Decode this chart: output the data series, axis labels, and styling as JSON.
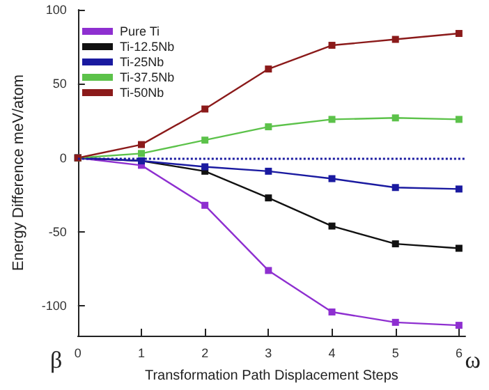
{
  "chart_data": {
    "type": "line",
    "xlabel": "Transformation Path Displacement Steps",
    "ylabel": "Energy Difference meV/atom",
    "x": [
      0,
      1,
      2,
      3,
      4,
      5,
      6
    ],
    "series": [
      {
        "name": "Pure Ti",
        "color": "#8e2fd0",
        "values": [
          0,
          -5,
          -32,
          -76,
          -104,
          -111,
          -113
        ]
      },
      {
        "name": "Ti-12.5Nb",
        "color": "#111111",
        "values": [
          0,
          -2,
          -9,
          -27,
          -46,
          -58,
          -61
        ]
      },
      {
        "name": "Ti-25Nb",
        "color": "#1a1aa0",
        "values": [
          0,
          -2,
          -6,
          -9,
          -14,
          -20,
          -21
        ]
      },
      {
        "name": "Ti-37.5Nb",
        "color": "#5cc24a",
        "values": [
          0,
          3,
          12,
          21,
          26,
          27,
          26
        ]
      },
      {
        "name": "Ti-50Nb",
        "color": "#8b1a1a",
        "values": [
          0,
          9,
          33,
          60,
          76,
          80,
          84
        ]
      }
    ],
    "xlim": [
      0,
      6.1
    ],
    "xticks": [
      0,
      1,
      2,
      3,
      4,
      5,
      6
    ],
    "ylim": [
      -120,
      100
    ],
    "yticks": [
      -100,
      -50,
      0,
      50,
      100
    ],
    "ref_lines": [
      {
        "axis": "y",
        "value": 0,
        "color": "#1a1aa0",
        "line_style": "dotted"
      }
    ],
    "annotations": [
      "β",
      "ω"
    ],
    "grid": false,
    "legend": "top left",
    "marker": "square",
    "line_style": "solid"
  }
}
